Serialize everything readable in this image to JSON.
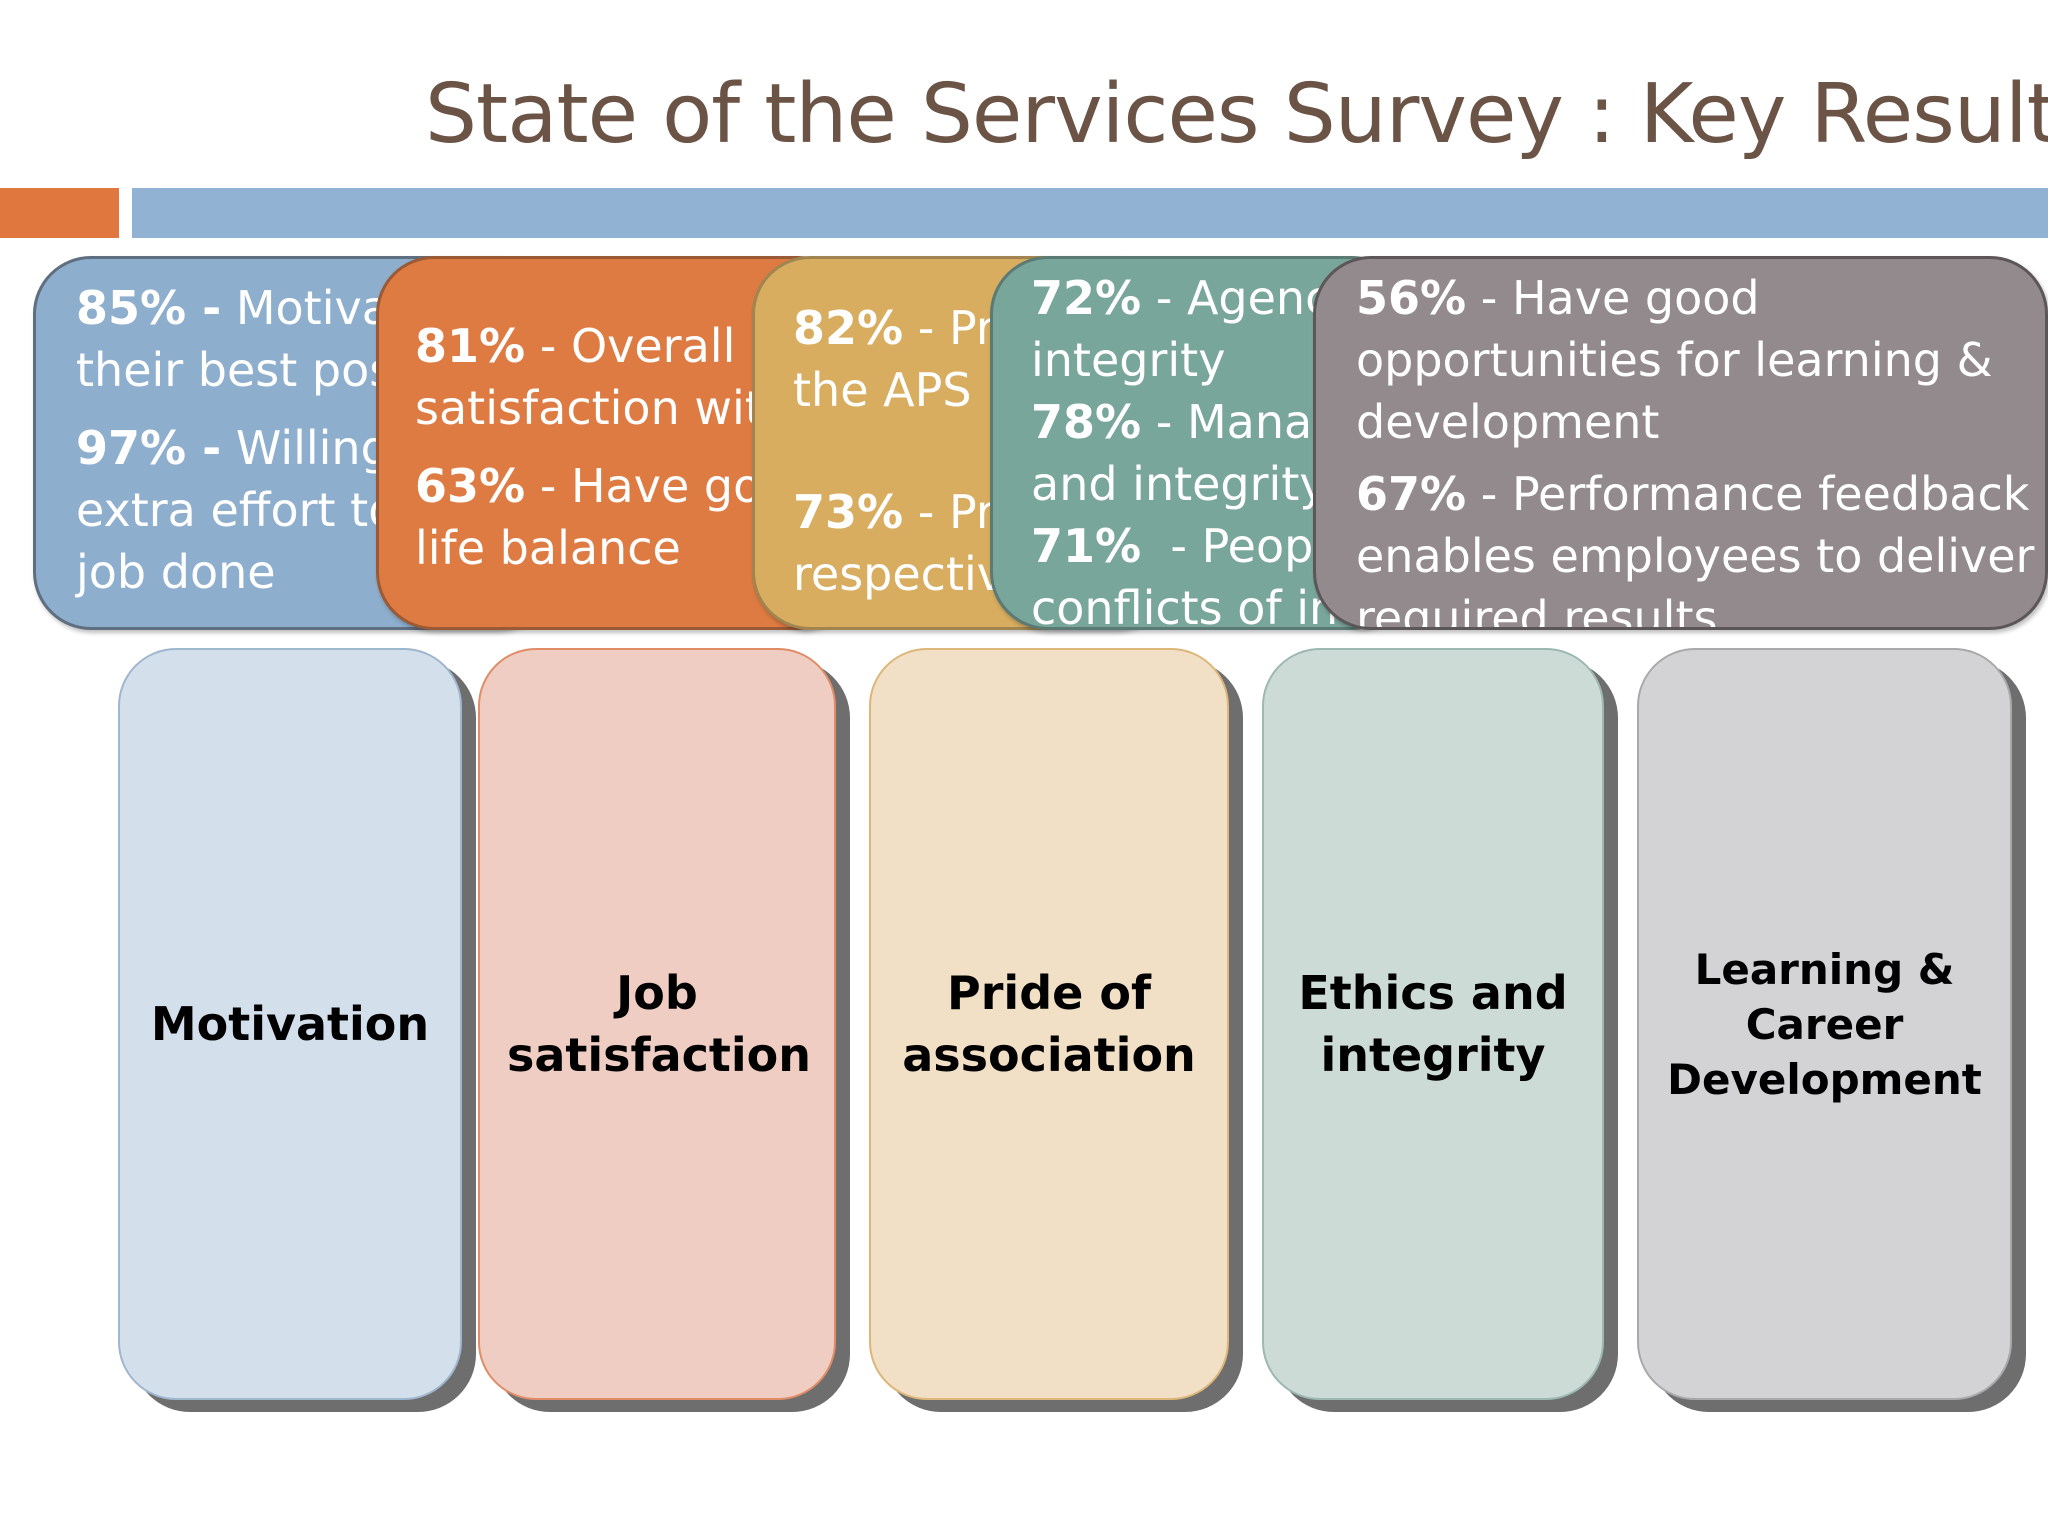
{
  "title": "State of the Services Survey : Key Results",
  "result_boxes": [
    {
      "lines": [
        {
          "pct": "85% -",
          "text": " Motivated to do"
        },
        {
          "pct": "",
          "text": "their best possible"
        },
        {
          "pct": "97% -",
          "text": " Willing to put in"
        },
        {
          "pct": "",
          "text": "extra effort to get the"
        },
        {
          "pct": "",
          "text": "job done"
        }
      ]
    },
    {
      "lines": [
        {
          "pct": "81%",
          "text": " - Overall"
        },
        {
          "pct": "",
          "text": "satisfaction with job"
        },
        {
          "pct": "63%",
          "text": " - Have good work"
        },
        {
          "pct": "",
          "text": "life balance"
        }
      ]
    },
    {
      "lines": [
        {
          "pct": "82%",
          "text": " - Proud to work in"
        },
        {
          "pct": "",
          "text": "the APS"
        },
        {
          "pct": "73%",
          "text": " - Proud of their"
        },
        {
          "pct": "",
          "text": "respective agency"
        }
      ]
    },
    {
      "lines": [
        {
          "pct": "72%",
          "text": " - Agency acts with"
        },
        {
          "pct": "",
          "text": "integrity"
        },
        {
          "pct": "78%",
          "text": " - Managers act with honesty"
        },
        {
          "pct": "",
          "text": "and integrity"
        },
        {
          "pct": "71%",
          "text": "  - People disclose"
        },
        {
          "pct": "",
          "text": "conflicts of interest"
        }
      ]
    },
    {
      "lines": [
        {
          "pct": "56%",
          "text": " - Have good"
        },
        {
          "pct": "",
          "text": "opportunities for learning &"
        },
        {
          "pct": "",
          "text": "development"
        },
        {
          "pct": "67%",
          "text": " - Performance feedback"
        },
        {
          "pct": "",
          "text": "enables employees to deliver"
        },
        {
          "pct": "",
          "text": "required results"
        }
      ]
    }
  ],
  "categories": [
    {
      "label": "Motivation"
    },
    {
      "label": "Job satisfaction"
    },
    {
      "label": "Pride of association"
    },
    {
      "label": "Ethics and integrity"
    },
    {
      "label": "Learning & Career Development"
    }
  ]
}
